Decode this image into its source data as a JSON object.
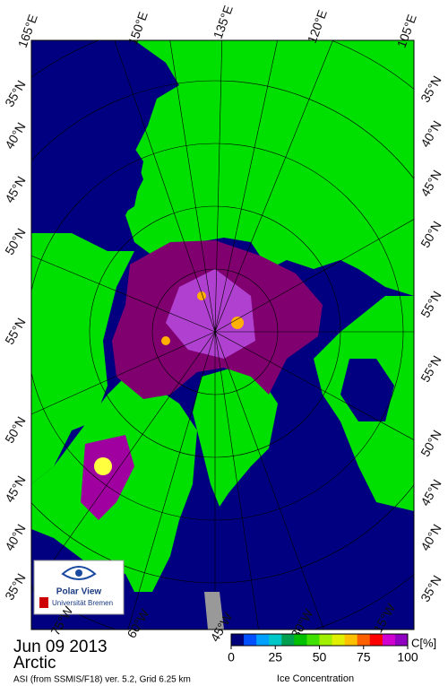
{
  "map": {
    "title": "Jun 09 2013",
    "region": "Arctic",
    "caption": "ASI (from SSMIS/F18) ver. 5.2,  Grid 6.25 km",
    "top_labels": [
      "165°E",
      "150°E",
      "135°E",
      "120°E",
      "105°E"
    ],
    "left_labels": [
      "35°N",
      "40°N",
      "45°N",
      "50°N",
      "55°N",
      "50°N",
      "45°N",
      "40°N",
      "35°N"
    ],
    "right_labels": [
      "35°N",
      "40°N",
      "45°N",
      "50°N",
      "55°N",
      "55°N",
      "50°N",
      "45°N",
      "40°N",
      "35°N"
    ],
    "bottom_labels": [
      "75°W",
      "60°W",
      "45°W",
      "30°W",
      "15°W"
    ],
    "logo": {
      "name": "Polar View",
      "institution": "Universität Bremen"
    },
    "colorbar": {
      "label": "Ice Concentration",
      "unit": "C[%]",
      "range": [
        0,
        100
      ],
      "ticks": [
        0,
        25,
        50,
        75,
        100
      ],
      "colors": [
        "#00007a",
        "#0050ff",
        "#00a0ff",
        "#00c8c8",
        "#00a050",
        "#00c000",
        "#40e000",
        "#a0f000",
        "#e0f000",
        "#ffc000",
        "#ff6000",
        "#ff0000",
        "#d000d0",
        "#9000c0"
      ]
    }
  }
}
